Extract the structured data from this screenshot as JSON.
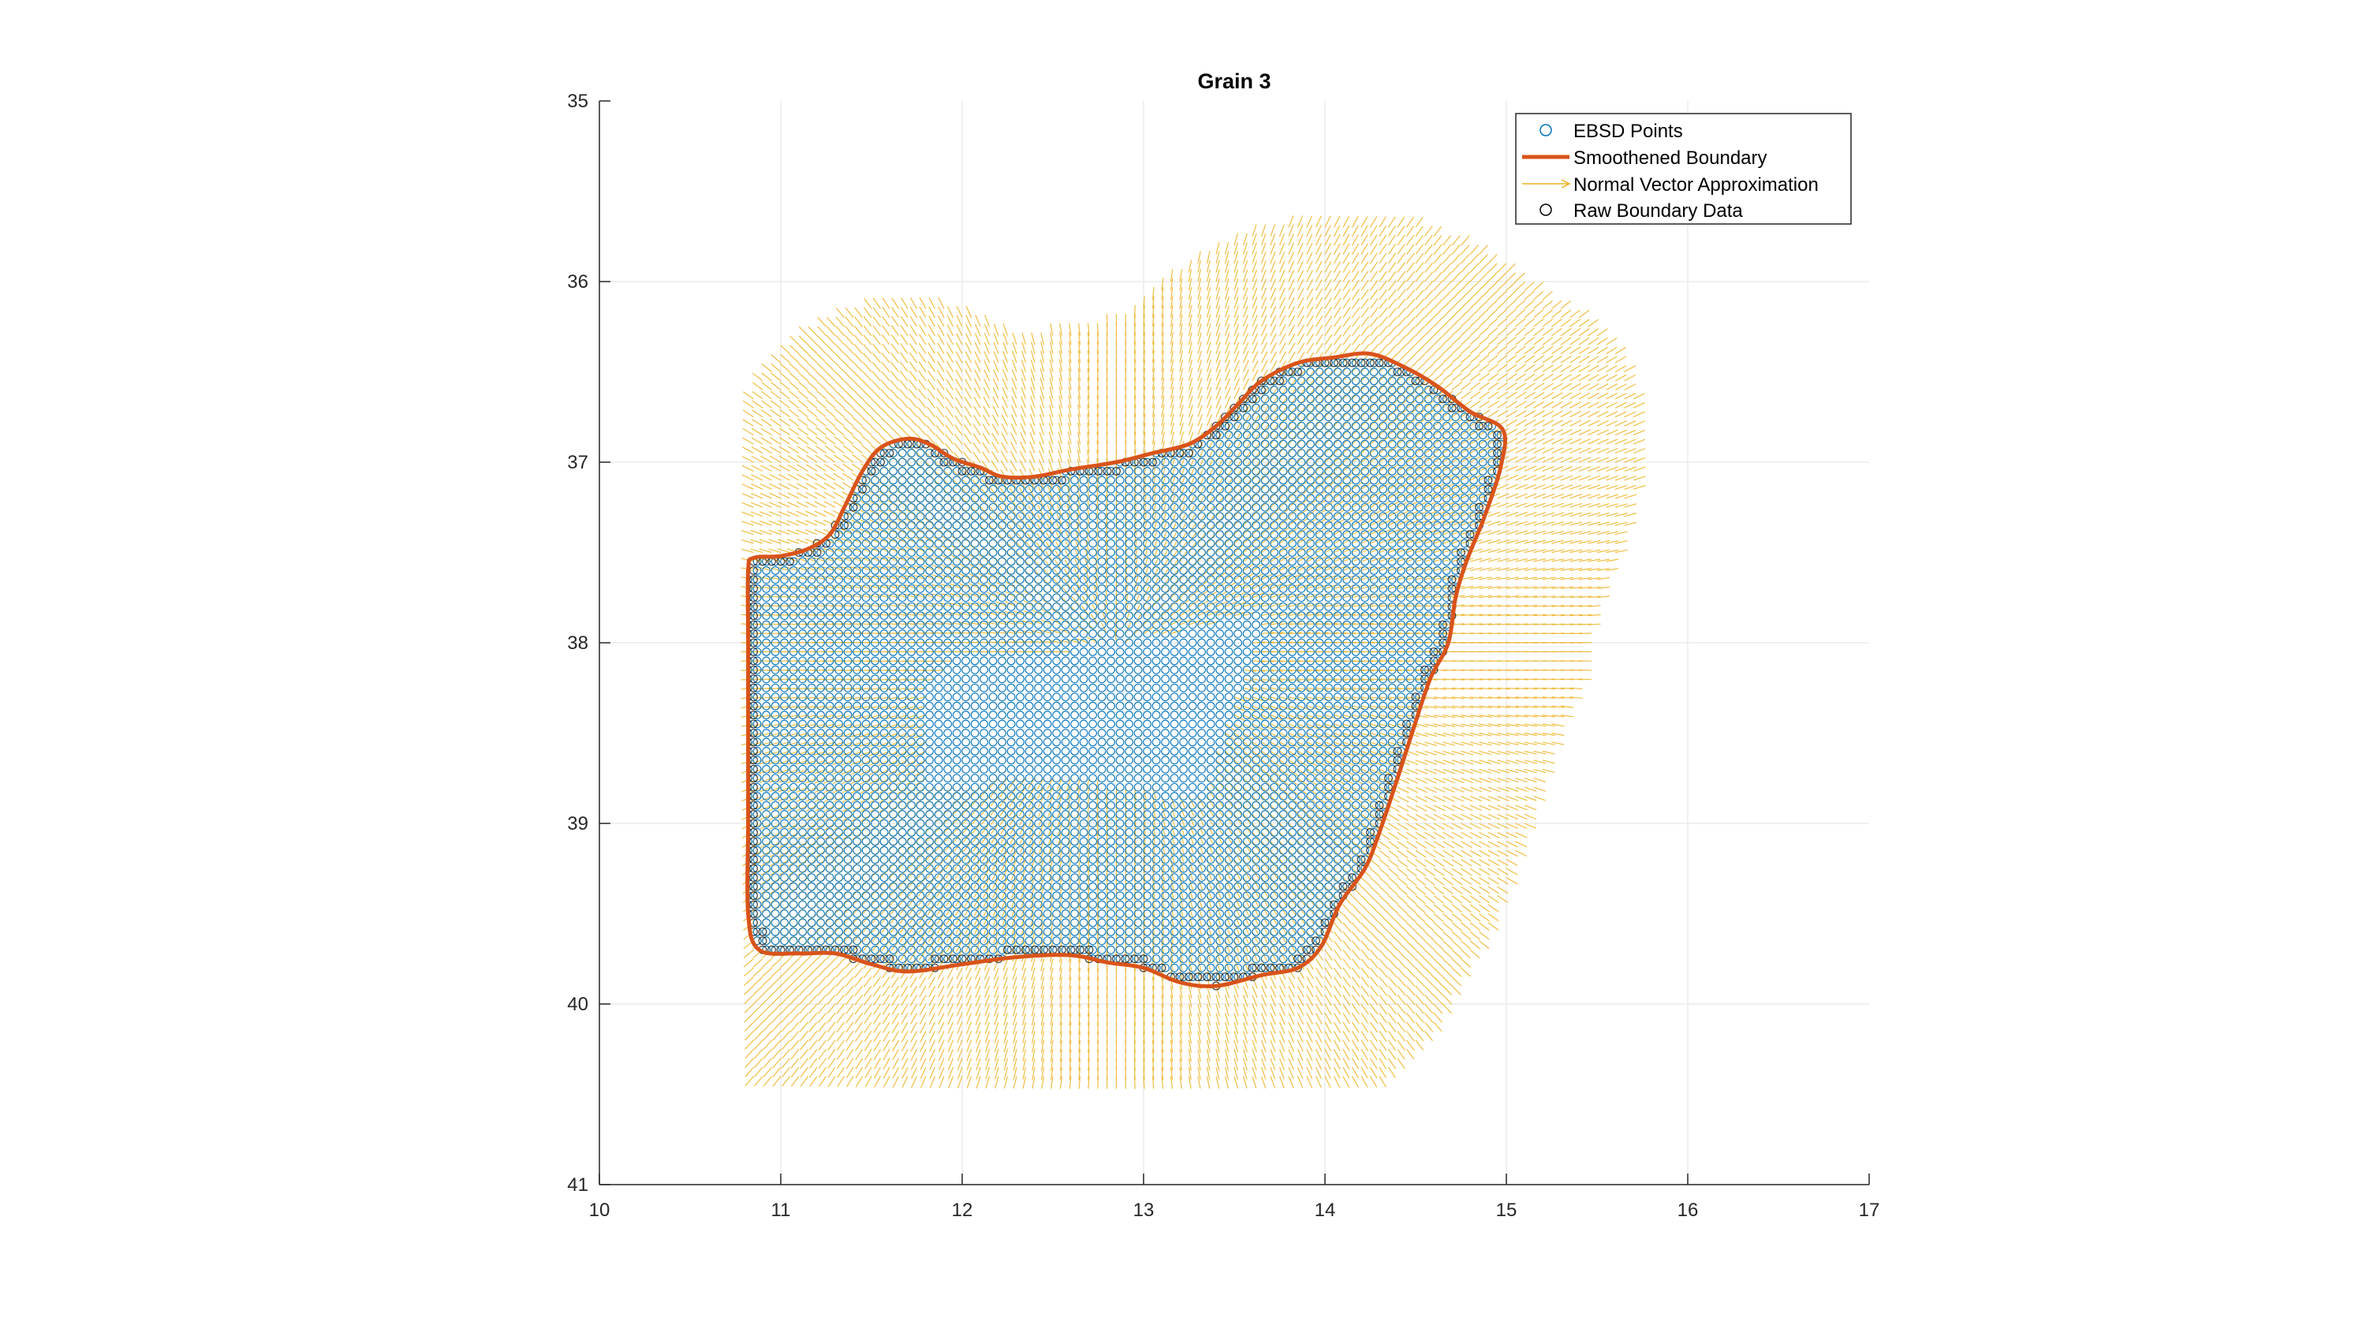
{
  "chart_data": {
    "type": "scatter",
    "title": "Grain 3",
    "xlabel": "",
    "ylabel": "",
    "xlim": [
      10,
      17
    ],
    "ylim": [
      35,
      41
    ],
    "y_reversed": true,
    "grid": true,
    "legend_location": "top-right",
    "x_ticks": [
      "10",
      "11",
      "12",
      "13",
      "14",
      "15",
      "16",
      "17"
    ],
    "y_ticks": [
      "35",
      "36",
      "37",
      "38",
      "39",
      "40",
      "41"
    ],
    "ebsd_grid_spacing": 0.05,
    "series": [
      {
        "name": "EBSD Points",
        "kind": "markers-circle",
        "color": "#0072BD"
      },
      {
        "name": "Smoothened Boundary",
        "kind": "line",
        "color": "#D95319"
      },
      {
        "name": "Normal Vector Approximation",
        "kind": "quiver",
        "color": "#EDB120"
      },
      {
        "name": "Raw Boundary Data",
        "kind": "markers-circle",
        "color": "#000000"
      }
    ],
    "boundary": [
      [
        10.82,
        37.6
      ],
      [
        10.85,
        37.53
      ],
      [
        11.0,
        37.52
      ],
      [
        11.15,
        37.48
      ],
      [
        11.27,
        37.4
      ],
      [
        11.35,
        37.25
      ],
      [
        11.45,
        37.05
      ],
      [
        11.55,
        36.92
      ],
      [
        11.7,
        36.87
      ],
      [
        11.82,
        36.9
      ],
      [
        11.95,
        36.98
      ],
      [
        12.1,
        37.03
      ],
      [
        12.22,
        37.08
      ],
      [
        12.4,
        37.08
      ],
      [
        12.6,
        37.04
      ],
      [
        12.85,
        37.0
      ],
      [
        13.05,
        36.95
      ],
      [
        13.25,
        36.9
      ],
      [
        13.4,
        36.8
      ],
      [
        13.52,
        36.68
      ],
      [
        13.65,
        36.55
      ],
      [
        13.85,
        36.45
      ],
      [
        14.05,
        36.42
      ],
      [
        14.25,
        36.4
      ],
      [
        14.45,
        36.48
      ],
      [
        14.62,
        36.58
      ],
      [
        14.8,
        36.72
      ],
      [
        14.98,
        36.82
      ],
      [
        14.97,
        37.02
      ],
      [
        14.88,
        37.3
      ],
      [
        14.78,
        37.55
      ],
      [
        14.72,
        37.75
      ],
      [
        14.68,
        38.0
      ],
      [
        14.58,
        38.2
      ],
      [
        14.48,
        38.5
      ],
      [
        14.4,
        38.75
      ],
      [
        14.3,
        39.05
      ],
      [
        14.22,
        39.25
      ],
      [
        14.08,
        39.45
      ],
      [
        13.98,
        39.68
      ],
      [
        13.85,
        39.8
      ],
      [
        13.65,
        39.84
      ],
      [
        13.4,
        39.9
      ],
      [
        13.2,
        39.88
      ],
      [
        13.0,
        39.8
      ],
      [
        12.8,
        39.77
      ],
      [
        12.6,
        39.73
      ],
      [
        12.3,
        39.74
      ],
      [
        12.0,
        39.78
      ],
      [
        11.7,
        39.82
      ],
      [
        11.5,
        39.78
      ],
      [
        11.3,
        39.72
      ],
      [
        11.1,
        39.72
      ],
      [
        10.88,
        39.7
      ],
      [
        10.82,
        39.5
      ],
      [
        10.82,
        39.0
      ],
      [
        10.82,
        38.5
      ],
      [
        10.82,
        38.0
      ]
    ]
  }
}
